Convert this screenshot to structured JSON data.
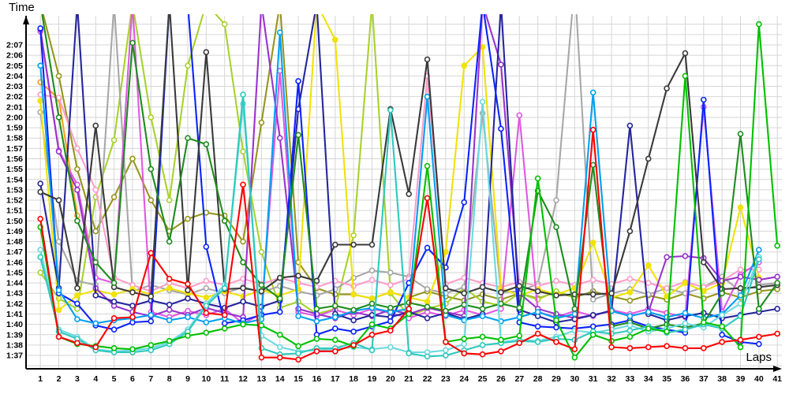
{
  "chart_data": {
    "type": "line",
    "title": "",
    "xlabel": "Laps",
    "ylabel": "Time",
    "x": [
      1,
      2,
      3,
      4,
      5,
      6,
      7,
      8,
      9,
      10,
      11,
      12,
      13,
      14,
      15,
      16,
      17,
      18,
      19,
      20,
      21,
      22,
      23,
      24,
      25,
      26,
      27,
      28,
      29,
      30,
      31,
      32,
      33,
      34,
      35,
      36,
      37,
      38,
      39,
      40,
      41
    ],
    "x_axis": {
      "tick_labels": [
        "1",
        "2",
        "3",
        "4",
        "5",
        "6",
        "7",
        "8",
        "9",
        "10",
        "11",
        "12",
        "13",
        "14",
        "15",
        "16",
        "17",
        "18",
        "19",
        "20",
        "21",
        "22",
        "23",
        "24",
        "25",
        "26",
        "27",
        "28",
        "29",
        "30",
        "31",
        "32",
        "33",
        "34",
        "35",
        "36",
        "37",
        "38",
        "39",
        "40",
        "41"
      ]
    },
    "y_axis": {
      "unit": "m:ss lap time, values stored as seconds (97 = 1:37)",
      "min_label": "1:37",
      "max_label": "2:07",
      "tick_labels": [
        "2:07",
        "2:06",
        "2:05",
        "2:04",
        "2:03",
        "2:02",
        "2:01",
        "2:00",
        "1:59",
        "1:58",
        "1:57",
        "1:56",
        "1:55",
        "1:54",
        "1:53",
        "1:52",
        "1:51",
        "1:50",
        "1:49",
        "1:48",
        "1:47",
        "1:46",
        "1:45",
        "1:44",
        "1:43",
        "1:42",
        "1:41",
        "1:40",
        "1:39",
        "1:38",
        "1:37"
      ]
    },
    "grid": true,
    "legend": "none",
    "note": "values above 129.8s run off the top of the plot (pit stops); null = series not visible that lap",
    "series": [
      {
        "name": "orange",
        "color": "#ff9b1f",
        "marker": "open",
        "values": [
          123.4,
          121.8,
          110.5,
          null,
          null,
          null,
          null,
          null,
          null,
          null,
          null,
          null,
          null,
          null,
          null,
          null,
          null,
          null,
          null,
          null,
          null,
          null,
          null,
          null,
          null,
          null,
          null,
          null,
          null,
          null,
          null,
          null,
          null,
          null,
          null,
          null,
          null,
          null,
          null,
          null,
          null
        ]
      },
      {
        "name": "olive",
        "color": "#96961e",
        "marker": "open",
        "values": [
          131,
          124,
          115,
          109,
          112.3,
          116,
          112,
          109,
          110.2,
          110.8,
          110.5,
          108,
          119.5,
          131,
          106,
          103.5,
          102.9,
          102.9,
          102.5,
          103.1,
          102.6,
          103.2,
          102.7,
          102.3,
          102.9,
          102.4,
          103,
          102.5,
          103.1,
          102.6,
          103.2,
          102.7,
          102.3,
          102.8,
          102.4,
          103,
          102.5,
          103.1,
          102.6,
          103.2,
          103.4
        ]
      },
      {
        "name": "lime",
        "color": "#a8d22e",
        "marker": "open",
        "values": [
          105,
          102.5,
          101.5,
          112.3,
          117.8,
          131,
          120,
          112,
          125,
          131,
          129,
          116.7,
          107,
          101.6,
          102.2,
          101,
          101.5,
          108.6,
          131,
          103,
          100.8,
          101.5,
          102,
          103.5,
          102.2,
          101.8,
          103,
          102.4,
          103.2,
          102.6,
          null,
          null,
          null,
          null,
          null,
          null,
          null,
          null,
          null,
          null,
          null
        ]
      },
      {
        "name": "gray",
        "color": "#a8a8a8",
        "marker": "open",
        "values": [
          120.5,
          108,
          104.2,
          103.8,
          131,
          103.2,
          103.8,
          103.3,
          102.9,
          103.5,
          103,
          103.6,
          103.1,
          103.7,
          103.2,
          102.8,
          103.4,
          104.5,
          105.2,
          105,
          104.6,
          103.4,
          103,
          103.6,
          120.4,
          103.1,
          103.2,
          103.9,
          112,
          133,
          102.4,
          103,
          103.4,
          102.9,
          103.5,
          103,
          103.6,
          104.6,
          103.2,
          103.8,
          104
        ]
      },
      {
        "name": "pink",
        "color": "#ff9ec9",
        "marker": "open",
        "values": [
          122.2,
          121.9,
          117,
          113,
          104.5,
          103.8,
          103.2,
          104,
          103.5,
          104.2,
          103.8,
          104.4,
          103.9,
          104.5,
          104,
          103.6,
          104.2,
          103.7,
          104.3,
          103.8,
          104.4,
          124,
          103.9,
          104.5,
          104,
          103.6,
          104.1,
          103.7,
          104.2,
          103.8,
          104.3,
          103.9,
          104.4,
          104,
          103.5,
          104.1,
          103.6,
          104.2,
          105.3,
          105.3,
          null
        ]
      },
      {
        "name": "yellow",
        "color": "#f0e20a",
        "marker": "filled",
        "values": [
          121.6,
          101.4,
          102.8,
          103.3,
          102.9,
          103.4,
          102.9,
          103.5,
          103,
          102.6,
          103.2,
          102.7,
          103.3,
          102.8,
          103.4,
          131,
          127.5,
          102.9,
          102.5,
          103.1,
          102.6,
          102.2,
          107,
          125,
          126.8,
          103.5,
          102.8,
          103.4,
          102.9,
          103.5,
          107.9,
          102.6,
          103.1,
          105.7,
          102.7,
          104,
          103.2,
          104,
          111.3,
          104.5,
          null
        ]
      },
      {
        "name": "magenta",
        "color": "#e059e0",
        "marker": "open",
        "values": [
          128.3,
          116.8,
          113.5,
          104.5,
          104,
          131,
          101.2,
          100.7,
          101.3,
          100.9,
          101.5,
          100.1,
          101,
          124.5,
          101.2,
          100.8,
          101.4,
          100.9,
          101.5,
          101.1,
          100.6,
          101.2,
          100.8,
          101.4,
          100.9,
          101.5,
          120.2,
          101.2,
          100.7,
          101.3,
          100.8,
          101.4,
          101,
          101.5,
          101.1,
          100.7,
          121,
          101.2,
          104.8,
          106,
          null
        ]
      },
      {
        "name": "purple",
        "color": "#9933cc",
        "marker": "open",
        "values": [
          128.5,
          116.7,
          113,
          103.5,
          101.8,
          101.2,
          100.8,
          101.4,
          100.9,
          101.6,
          101.1,
          100.7,
          131,
          118,
          101.5,
          101,
          100.6,
          101.2,
          100.8,
          101.4,
          101,
          101.6,
          101.2,
          100.8,
          131,
          125.1,
          103,
          101.5,
          101,
          100.6,
          100.9,
          101.3,
          100.8,
          101.2,
          106.5,
          106.6,
          106.4,
          104.2,
          104.6,
          104.3,
          104.6
        ]
      },
      {
        "name": "navy",
        "color": "#26269c",
        "marker": "open",
        "values": [
          113.6,
          103.5,
          131,
          102.8,
          102.2,
          101.8,
          102.3,
          101.9,
          102.5,
          102,
          101.6,
          102.2,
          101.7,
          102.3,
          120.8,
          131,
          101,
          100.4,
          100.9,
          100.7,
          101.2,
          100.6,
          101.1,
          100.5,
          101,
          131,
          101.4,
          100.8,
          100.2,
          100.5,
          100.9,
          101.3,
          119.2,
          101,
          100.4,
          100.8,
          101.1,
          100.6,
          100.9,
          101.2,
          101.5
        ]
      },
      {
        "name": "blue",
        "color": "#0b24fb",
        "marker": "open",
        "values": [
          128.6,
          103,
          102,
          99.9,
          99.5,
          100.2,
          100.3,
          131,
          131,
          107.5,
          100.1,
          100.4,
          100.9,
          101.2,
          123.5,
          99,
          99.6,
          99.3,
          99.8,
          100.3,
          104,
          107.4,
          105.5,
          111.8,
          131,
          118.9,
          100.2,
          99.8,
          99.7,
          99.6,
          99.8,
          100,
          100.4,
          99.8,
          99.5,
          99.2,
          121.7,
          99,
          98.3,
          98.1,
          null
        ]
      },
      {
        "name": "sky-blue",
        "color": "#00a0f0",
        "marker": "open",
        "values": [
          125,
          103.3,
          100.5,
          100.1,
          100.4,
          100.6,
          100.9,
          100.4,
          100.7,
          100.2,
          100.6,
          100.1,
          100.5,
          128.2,
          100.8,
          100.3,
          100.7,
          101.3,
          101.6,
          101.2,
          101.5,
          122,
          100.9,
          100.4,
          100.8,
          100.3,
          100.7,
          101.2,
          100.6,
          101,
          122.4,
          101.3,
          100.8,
          101.2,
          100.7,
          101.1,
          100.6,
          101,
          102.8,
          107.2,
          null
        ]
      },
      {
        "name": "black",
        "color": "#3a3a3a",
        "marker": "open",
        "values": [
          112.8,
          112,
          103.5,
          119.2,
          103.6,
          103.1,
          102.7,
          131,
          103.3,
          126.3,
          103.4,
          103.5,
          103.2,
          104.5,
          104.7,
          104.2,
          107.7,
          107.7,
          107.7,
          120.8,
          112.6,
          125.6,
          103.5,
          103,
          103.6,
          103.1,
          103.7,
          103.2,
          102.8,
          102.9,
          102.9,
          103,
          109,
          116,
          122.8,
          126.2,
          106,
          103.4,
          103.5,
          103.6,
          103.8
        ]
      },
      {
        "name": "dark-green",
        "color": "#1e8c1e",
        "marker": "open",
        "values": [
          131,
          120,
          110,
          106,
          104,
          127.2,
          115,
          108,
          118,
          117.4,
          110,
          106,
          103.8,
          102.5,
          118.3,
          101.5,
          101.8,
          101.4,
          102,
          101.6,
          102.1,
          101.7,
          101.3,
          101.9,
          101.5,
          102,
          101.6,
          112.9,
          109.4,
          101.5,
          115.4,
          99.8,
          100.2,
          99.6,
          100,
          99.7,
          100.1,
          103,
          118.4,
          101.5,
          104
        ]
      },
      {
        "name": "light-cyan",
        "color": "#6bd9e0",
        "marker": "open",
        "values": [
          107.2,
          99.5,
          98.8,
          97.6,
          97.4,
          97.5,
          97.7,
          98.3,
          99.5,
          102,
          103.8,
          121.3,
          98.9,
          97.8,
          97.4,
          97.5,
          97.6,
          97.8,
          97.6,
          97.8,
          97.3,
          97.3,
          97.5,
          98.1,
          121.5,
          98.3,
          98.5,
          98.4,
          98.8,
          99.4,
          99.2,
          99.5,
          99.9,
          99.3,
          99.6,
          100.1,
          99.7,
          100.9,
          102,
          106.5,
          null
        ]
      },
      {
        "name": "turquoise",
        "color": "#2fc9bd",
        "marker": "open",
        "values": [
          106.5,
          99.3,
          98.6,
          97.5,
          97.3,
          97.3,
          97.5,
          98.1,
          99.3,
          101.8,
          103.5,
          122.2,
          97.7,
          97.1,
          97.2,
          97.7,
          97.7,
          98.2,
          97.5,
          120.7,
          97.2,
          96.9,
          97,
          97.5,
          98,
          98.2,
          98.4,
          98.3,
          98.6,
          98.5,
          99.3,
          99.1,
          99.4,
          99.8,
          99.2,
          99.5,
          100,
          99.6,
          100.8,
          106.3,
          null
        ]
      },
      {
        "name": "green",
        "color": "#00c000",
        "marker": "open",
        "values": [
          109.4,
          98.8,
          98.1,
          97.9,
          97.7,
          97.6,
          98,
          98.4,
          98.9,
          99.2,
          99.6,
          100,
          99.9,
          99,
          97.9,
          98.6,
          98.5,
          97.9,
          100,
          99.6,
          101,
          115.3,
          98.3,
          98.6,
          98.8,
          98.5,
          98.9,
          114.1,
          100.4,
          96.8,
          99,
          98.4,
          98.8,
          99.6,
          99.3,
          124,
          100.2,
          99.8,
          97.8,
          129,
          107.6
        ]
      },
      {
        "name": "red",
        "color": "#ff0000",
        "marker": "open",
        "values": [
          110.2,
          98.8,
          98.2,
          97.8,
          100.6,
          100.7,
          106.9,
          104.4,
          103.9,
          101.1,
          100.9,
          113.5,
          96.8,
          96.8,
          96.6,
          97.4,
          97.4,
          98,
          99,
          99.4,
          101.5,
          112.2,
          98.3,
          97.2,
          97.1,
          97.4,
          98.2,
          99.1,
          98.3,
          97.6,
          118.8,
          97.8,
          97.7,
          97.8,
          97.9,
          97.7,
          97.7,
          98.3,
          98.5,
          98.8,
          99.1
        ]
      }
    ]
  }
}
